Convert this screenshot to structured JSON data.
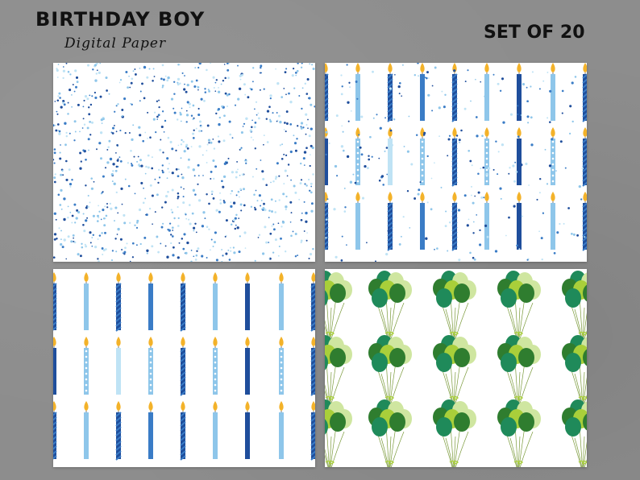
{
  "header": {
    "title": "BIRTHDAY BOY",
    "subtitle": "Digital Paper",
    "badge": "SET OF 20"
  },
  "papers": [
    {
      "pattern": "confetti-dots"
    },
    {
      "pattern": "candles-with-dots"
    },
    {
      "pattern": "candles"
    },
    {
      "pattern": "green-balloons"
    }
  ],
  "colors": {
    "background": "#8d8d8d",
    "navy": "#1f4e9c",
    "blue": "#3a7cc6",
    "light_blue": "#8ec6ea",
    "pale_blue": "#bfe3f5",
    "flame": "#f3b229",
    "dark_green": "#2f7d2f",
    "teal_green": "#1f8a5a",
    "lime": "#a9cf3a",
    "pale_green": "#cfe6a0"
  }
}
